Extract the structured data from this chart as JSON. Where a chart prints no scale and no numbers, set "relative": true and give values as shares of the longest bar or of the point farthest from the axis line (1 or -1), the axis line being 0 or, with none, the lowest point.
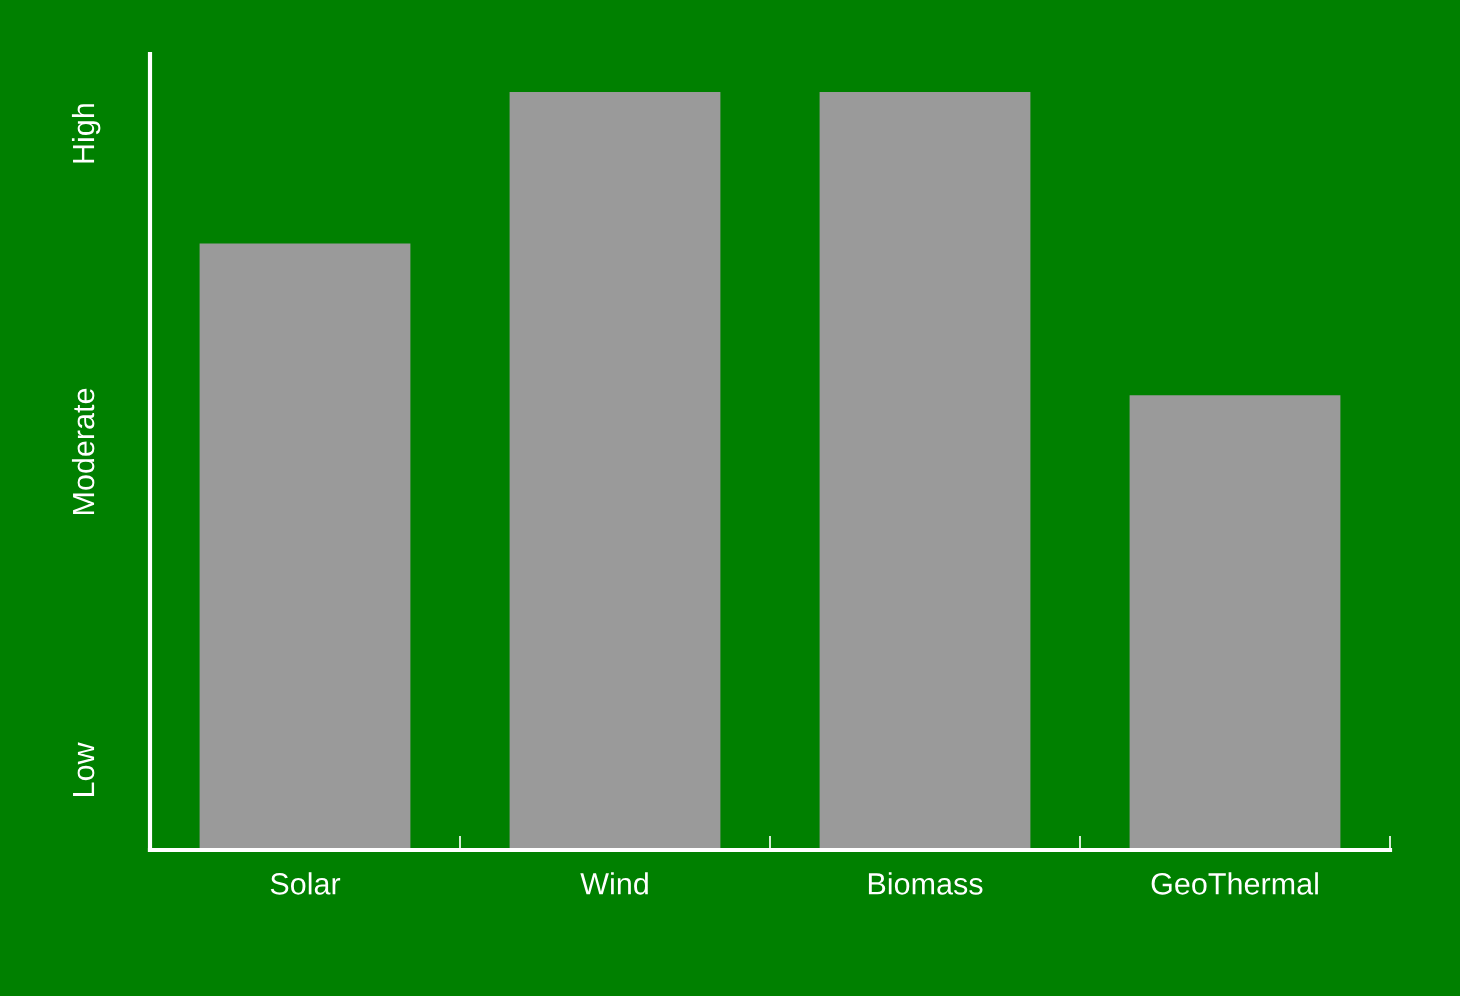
{
  "chart_data": {
    "type": "bar",
    "categories": [
      "Solar",
      "Wind",
      "Biomass",
      "GeoThermal"
    ],
    "values": [
      0.8,
      1,
      1,
      0.6
    ],
    "relative": true,
    "color": "#9a9a9a",
    "annotations": [
      "Low",
      "Moderate",
      "High"
    ],
    "grid": false
  }
}
